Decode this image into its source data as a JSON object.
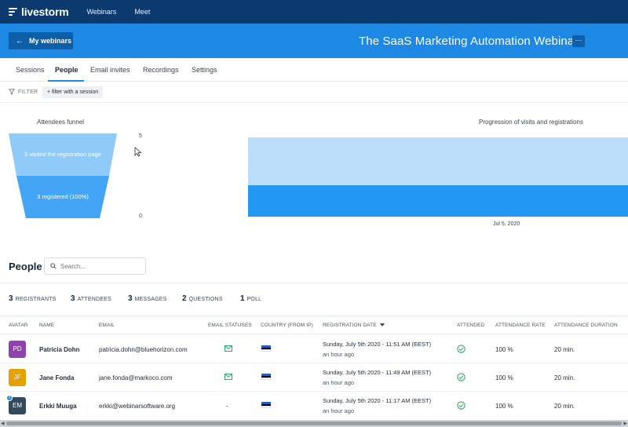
{
  "topnav": {
    "brand": "livestorm",
    "links": [
      "Webinars",
      "Meet"
    ]
  },
  "header": {
    "back_label": "My webinars",
    "title": "The SaaS Marketing Automation Webinar",
    "more_label": "···"
  },
  "tabs": [
    "Sessions",
    "People",
    "Email invites",
    "Recordings",
    "Settings"
  ],
  "active_tab": "People",
  "filter": {
    "label": "FILTER",
    "chip": "+ filter with a session"
  },
  "funnel": {
    "title": "Attendees funnel",
    "stages": [
      {
        "label": "3 visited the registration page",
        "color": "#90caf9"
      },
      {
        "label": "3 registered (100%)",
        "color": "#42a5f5"
      }
    ],
    "axis_max": "5",
    "axis_min": "0"
  },
  "progression": {
    "title": "Progression of visits and registrations",
    "date_label": "Jul 5, 2020",
    "colors": {
      "visits": "#bbdefb",
      "registrations": "#2196f3"
    }
  },
  "chart_data": {
    "type": "area",
    "title": "Progression of visits and registrations",
    "x": [
      "Jul 5, 2020"
    ],
    "ylim": [
      0,
      5
    ],
    "series": [
      {
        "values": [
          3
        ],
        "color": "#bbdefb"
      },
      {
        "values": [
          3
        ],
        "color": "#2196f3"
      }
    ]
  },
  "people": {
    "title": "People",
    "search_placeholder": "Search..."
  },
  "stats": [
    {
      "n": "3",
      "label": "REGISTRANTS"
    },
    {
      "n": "3",
      "label": "ATTENDEES"
    },
    {
      "n": "3",
      "label": "MESSAGES"
    },
    {
      "n": "2",
      "label": "QUESTIONS"
    },
    {
      "n": "1",
      "label": "POLL"
    }
  ],
  "columns": [
    "AVATAR",
    "NAME",
    "EMAIL",
    "EMAIL STATUSES",
    "COUNTRY (FROM IP)",
    "REGISTRATION DATE",
    "ATTENDED",
    "ATTENDANCE RATE",
    "ATTENDANCE DURATION"
  ],
  "rows": [
    {
      "initials": "PD",
      "avatar_color": "#8e44ad",
      "name": "Patricia Dohn",
      "email": "patricia.dohn@bluehorizon.com",
      "email_status": "mail",
      "reg_date": "Sunday, July 5th 2020 - 11:51 AM (EEST)",
      "reg_ago": "an hour ago",
      "rate": "100 %",
      "duration": "20 min."
    },
    {
      "initials": "JF",
      "avatar_color": "#e5a100",
      "name": "Jane Fonda",
      "email": "jane.fonda@markoco.com",
      "email_status": "mail",
      "reg_date": "Sunday, July 5th 2020 - 11:49 AM (EEST)",
      "reg_ago": "an hour ago",
      "rate": "100 %",
      "duration": "20 min."
    },
    {
      "initials": "EM",
      "avatar_color": "#34495e",
      "badge": "2",
      "name": "Erkki Muuga",
      "email": "erkki@webinarsoftware.org",
      "email_status": "-",
      "reg_date": "Sunday, July 5th 2020 - 11:17 AM (EEST)",
      "reg_ago": "an hour ago",
      "rate": "100 %",
      "duration": "20 min."
    }
  ]
}
